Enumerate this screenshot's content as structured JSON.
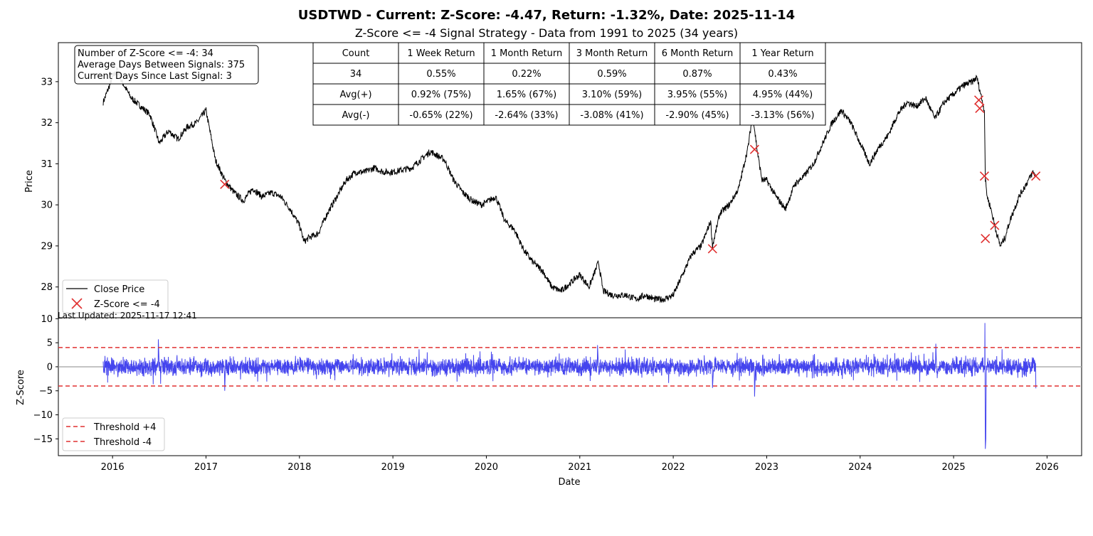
{
  "title": "USDTWD - Current: Z-Score: -4.47, Return: -1.32%, Date: 2025-11-14",
  "subtitle": "Z-Score <= -4 Signal Strategy - Data from 1991 to 2025 (34 years)",
  "info_box": {
    "line1": "Number of Z-Score <= -4: 34",
    "line2": "Average Days Between Signals: 375",
    "line3": "Current Days Since Last Signal: 3"
  },
  "last_updated": "Last Updated: 2025-11-17 12:41",
  "returns_table": {
    "headers": [
      "Count",
      "1 Week Return",
      "1 Month Return",
      "3 Month Return",
      "6 Month Return",
      "1 Year Return"
    ],
    "rows": [
      [
        "34",
        "0.55%",
        "0.22%",
        "0.59%",
        "0.87%",
        "0.43%"
      ],
      [
        "Avg(+)",
        "0.92% (75%)",
        "1.65% (67%)",
        "3.10% (59%)",
        "3.95% (55%)",
        "4.95% (44%)"
      ],
      [
        "Avg(-)",
        "-0.65% (22%)",
        "-2.64% (33%)",
        "-3.08% (41%)",
        "-2.90% (45%)",
        "-3.13% (56%)"
      ]
    ]
  },
  "chart_data": [
    {
      "type": "line",
      "ylabel": "Price",
      "xlabel": "",
      "xlim": [
        2015.42,
        2026.37
      ],
      "ylim": [
        27.25,
        33.95
      ],
      "yticks": [
        28,
        29,
        30,
        31,
        32,
        33
      ],
      "legend_placement": "lower-left",
      "series": [
        {
          "name": "Close Price",
          "color": "#000000",
          "x": [
            2015.9,
            2015.95,
            2016.0,
            2016.05,
            2016.1,
            2016.2,
            2016.3,
            2016.4,
            2016.5,
            2016.6,
            2016.7,
            2016.8,
            2016.9,
            2017.0,
            2017.05,
            2017.1,
            2017.2,
            2017.3,
            2017.4,
            2017.5,
            2017.6,
            2017.7,
            2017.8,
            2017.9,
            2018.0,
            2018.05,
            2018.1,
            2018.2,
            2018.3,
            2018.4,
            2018.5,
            2018.6,
            2018.7,
            2018.8,
            2018.9,
            2019.0,
            2019.2,
            2019.4,
            2019.55,
            2019.65,
            2019.75,
            2019.85,
            2019.95,
            2020.1,
            2020.2,
            2020.3,
            2020.4,
            2020.5,
            2020.6,
            2020.7,
            2020.8,
            2020.9,
            2021.0,
            2021.1,
            2021.2,
            2021.25,
            2021.35,
            2021.5,
            2021.6,
            2021.7,
            2021.8,
            2021.9,
            2022.0,
            2022.1,
            2022.2,
            2022.3,
            2022.4,
            2022.42,
            2022.5,
            2022.6,
            2022.7,
            2022.8,
            2022.85,
            2022.9,
            2022.95,
            2023.0,
            2023.1,
            2023.2,
            2023.3,
            2023.4,
            2023.5,
            2023.6,
            2023.7,
            2023.8,
            2023.9,
            2024.0,
            2024.1,
            2024.2,
            2024.3,
            2024.4,
            2024.5,
            2024.6,
            2024.7,
            2024.8,
            2024.9,
            2025.0,
            2025.1,
            2025.2,
            2025.25,
            2025.3,
            2025.33,
            2025.34,
            2025.36,
            2025.4,
            2025.45,
            2025.5,
            2025.55,
            2025.6,
            2025.7,
            2025.8,
            2025.85,
            2025.88
          ],
          "y": [
            32.5,
            32.8,
            33.1,
            33.3,
            33.0,
            32.6,
            32.4,
            32.2,
            31.5,
            31.8,
            31.6,
            31.9,
            32.0,
            32.3,
            31.7,
            31.1,
            30.6,
            30.3,
            30.1,
            30.4,
            30.2,
            30.3,
            30.2,
            29.9,
            29.5,
            29.1,
            29.2,
            29.3,
            29.8,
            30.2,
            30.6,
            30.8,
            30.8,
            30.9,
            30.8,
            30.8,
            30.9,
            31.3,
            31.1,
            30.6,
            30.3,
            30.1,
            30.0,
            30.2,
            29.6,
            29.4,
            28.9,
            28.6,
            28.4,
            28.0,
            27.9,
            28.1,
            28.3,
            28.0,
            28.6,
            27.9,
            27.8,
            27.8,
            27.7,
            27.8,
            27.7,
            27.7,
            27.8,
            28.3,
            28.8,
            29.0,
            29.6,
            29.0,
            29.8,
            30.0,
            30.4,
            31.4,
            32.2,
            31.3,
            30.6,
            30.6,
            30.2,
            29.9,
            30.5,
            30.7,
            31.0,
            31.5,
            32.0,
            32.3,
            32.0,
            31.5,
            31.0,
            31.4,
            31.7,
            32.2,
            32.5,
            32.4,
            32.6,
            32.1,
            32.5,
            32.7,
            32.9,
            33.0,
            33.1,
            32.6,
            32.3,
            30.6,
            30.2,
            29.9,
            29.4,
            29.0,
            29.2,
            29.6,
            30.2,
            30.6,
            30.8,
            30.7
          ]
        }
      ],
      "markers": {
        "name": "Z-Score <= -4",
        "color": "#e03030",
        "x": [
          2017.2,
          2022.42,
          2022.87,
          2025.27,
          2025.28,
          2025.33,
          2025.34,
          2025.44,
          2025.88
        ],
        "y": [
          30.5,
          28.93,
          31.35,
          32.55,
          32.35,
          30.7,
          29.18,
          29.5,
          30.7
        ]
      }
    },
    {
      "type": "line",
      "ylabel": "Z-Score",
      "xlabel": "Date",
      "xlim": [
        2015.42,
        2026.37
      ],
      "ylim": [
        -18.5,
        10.2
      ],
      "yticks": [
        10,
        5,
        0,
        -5,
        -10,
        -15
      ],
      "xticks": [
        2016,
        2017,
        2018,
        2019,
        2020,
        2021,
        2022,
        2023,
        2024,
        2025,
        2026
      ],
      "legend_placement": "lower-left",
      "series": [
        {
          "name": "",
          "color": "#4444ee",
          "x": [
            2015.9,
            2016.48,
            2016.49,
            2016.5,
            2017.19,
            2017.2,
            2017.21,
            2021.18,
            2021.19,
            2021.2,
            2022.41,
            2022.42,
            2022.43,
            2022.86,
            2022.87,
            2022.88,
            2024.8,
            2024.81,
            2024.82,
            2025.33,
            2025.335,
            2025.34,
            2025.345,
            2025.35,
            2025.88
          ],
          "y": [
            0,
            0,
            5.7,
            0,
            0,
            -5.0,
            0,
            0,
            4.5,
            0,
            0,
            -4.4,
            0,
            0,
            -6.2,
            0,
            0,
            4.8,
            0,
            0,
            9.1,
            -17.1,
            -15.0,
            0,
            -4.47
          ],
          "noise_amplitude": 1.5
        },
        {
          "name": "Threshold +4",
          "color": "#e03030",
          "y_const": 4,
          "dashed": true
        },
        {
          "name": "Threshold -4",
          "color": "#e03030",
          "y_const": -4,
          "dashed": true
        }
      ],
      "zero_line_color": "#b0b0b0"
    }
  ]
}
